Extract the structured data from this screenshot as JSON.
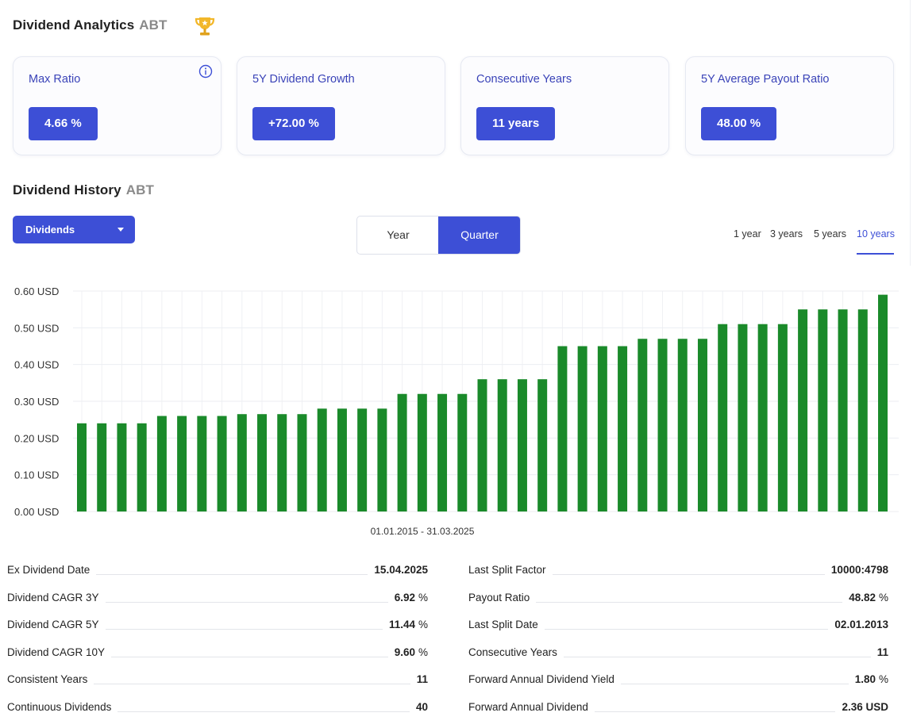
{
  "analytics": {
    "title": "Dividend Analytics",
    "ticker": "ABT",
    "cards": [
      {
        "label": "Max Ratio",
        "value": "4.66 %"
      },
      {
        "label": "5Y Dividend Growth",
        "value": "+72.00 %"
      },
      {
        "label": "Consecutive Years",
        "value": "11 years"
      },
      {
        "label": "5Y Average Payout Ratio",
        "value": "48.00 %"
      }
    ]
  },
  "history": {
    "title": "Dividend History",
    "ticker": "ABT",
    "dropdown_value": "Dividends",
    "toggle": {
      "year": "Year",
      "quarter": "Quarter",
      "active": "quarter"
    },
    "ranges": [
      "1 year",
      "3 years",
      "5 years",
      "10 years"
    ],
    "active_range": "10 years"
  },
  "colors": {
    "accent": "#3d4fd6",
    "bar": "#1a8a2a",
    "card_label": "#3a43b8"
  },
  "chart_data": {
    "type": "bar",
    "xlabel": "01.01.2015 - 31.03.2025",
    "ylabel": "",
    "ylim": [
      0,
      0.6
    ],
    "y_ticks": [
      "0.00 USD",
      "0.10 USD",
      "0.20 USD",
      "0.30 USD",
      "0.40 USD",
      "0.50 USD",
      "0.60 USD"
    ],
    "grid": true,
    "values": [
      0.24,
      0.24,
      0.24,
      0.24,
      0.26,
      0.26,
      0.26,
      0.26,
      0.265,
      0.265,
      0.265,
      0.265,
      0.28,
      0.28,
      0.28,
      0.28,
      0.32,
      0.32,
      0.32,
      0.32,
      0.36,
      0.36,
      0.36,
      0.36,
      0.45,
      0.45,
      0.45,
      0.45,
      0.47,
      0.47,
      0.47,
      0.47,
      0.51,
      0.51,
      0.51,
      0.51,
      0.55,
      0.55,
      0.55,
      0.55,
      0.59
    ]
  },
  "stats": {
    "left": [
      {
        "label": "Ex Dividend Date",
        "value": "15.04.2025",
        "unit": ""
      },
      {
        "label": "Dividend CAGR 3Y",
        "value": "6.92",
        "unit": "%"
      },
      {
        "label": "Dividend CAGR 5Y",
        "value": "11.44",
        "unit": "%"
      },
      {
        "label": "Dividend CAGR 10Y",
        "value": "9.60",
        "unit": "%"
      },
      {
        "label": "Consistent Years",
        "value": "11",
        "unit": ""
      },
      {
        "label": "Continuous Dividends",
        "value": "40",
        "unit": ""
      }
    ],
    "right": [
      {
        "label": "Last Split Factor",
        "value": "10000:4798",
        "unit": ""
      },
      {
        "label": "Payout Ratio",
        "value": "48.82",
        "unit": "%"
      },
      {
        "label": "Last Split Date",
        "value": "02.01.2013",
        "unit": ""
      },
      {
        "label": "Consecutive Years",
        "value": "11",
        "unit": ""
      },
      {
        "label": "Forward Annual Dividend Yield",
        "value": "1.80",
        "unit": "%"
      },
      {
        "label": "Forward Annual Dividend",
        "value": "2.36 USD",
        "unit": ""
      }
    ]
  }
}
